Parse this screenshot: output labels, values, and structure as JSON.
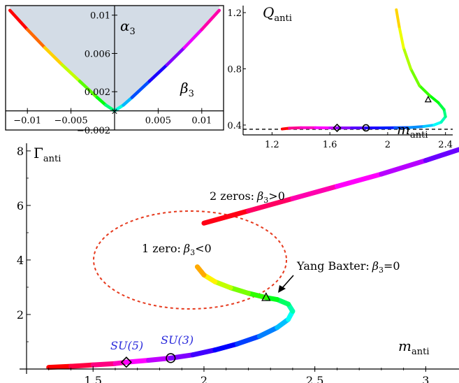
{
  "chart_data": [
    {
      "type": "scatter",
      "role": "inset-left",
      "title": "",
      "xlabel": "β3",
      "ylabel": "α3",
      "xlim": [
        -0.0125,
        0.0125
      ],
      "ylim": [
        -0.002,
        0.011
      ],
      "x_tick_labels": [
        "−0.01",
        "−0.005",
        "0.005",
        "0.01"
      ],
      "y_tick_labels": [
        "0.01",
        "0.006",
        "0.002",
        "−0.002"
      ],
      "x_ticks": [
        -0.01,
        -0.005,
        0.005,
        0.01
      ],
      "y_ticks": [
        0.01,
        0.006,
        0.002,
        -0.002
      ],
      "shaded_region": "above curve, light blue-gray",
      "marker_at_origin": "×",
      "curve": {
        "x": [
          -0.012,
          -0.01,
          -0.008,
          -0.006,
          -0.004,
          -0.002,
          -0.001,
          0.0,
          0.001,
          0.002,
          0.004,
          0.006,
          0.008,
          0.01,
          0.012
        ],
        "y": [
          0.0105,
          0.0085,
          0.0066,
          0.0048,
          0.0031,
          0.0014,
          0.0006,
          0.0,
          0.0006,
          0.0014,
          0.0031,
          0.0048,
          0.0066,
          0.0085,
          0.0105
        ]
      },
      "color_gradient": "rainbow: red (left) → yellow → green → cyan (origin) → blue → purple → magenta (right)"
    },
    {
      "type": "line",
      "role": "inset-right",
      "title": "",
      "xlabel": "m_anti",
      "ylabel": "Q_anti",
      "xlim": [
        1.0,
        2.45
      ],
      "ylim": [
        0.33,
        1.25
      ],
      "x_tick_labels": [
        "1.2",
        "1.6",
        "2",
        "2.4"
      ],
      "y_tick_labels": [
        "1.2",
        "0.8",
        "0.4"
      ],
      "x_ticks": [
        1.2,
        1.6,
        2.0,
        2.4
      ],
      "y_ticks": [
        1.2,
        0.8,
        0.4
      ],
      "dashed_line_y": 0.37,
      "curve": {
        "x": [
          1.27,
          1.32,
          1.4,
          1.5,
          1.6,
          1.65,
          1.75,
          1.85,
          1.95,
          2.05,
          2.15,
          2.25,
          2.32,
          2.37,
          2.4,
          2.39,
          2.35,
          2.29,
          2.22,
          2.16,
          2.11,
          2.08,
          2.06
        ],
        "y": [
          0.372,
          0.378,
          0.381,
          0.381,
          0.38,
          0.38,
          0.38,
          0.38,
          0.38,
          0.381,
          0.382,
          0.39,
          0.4,
          0.42,
          0.46,
          0.51,
          0.56,
          0.61,
          0.68,
          0.8,
          0.95,
          1.1,
          1.22
        ]
      },
      "markers": [
        {
          "shape": "diamond",
          "x": 1.65,
          "y": 0.38
        },
        {
          "shape": "circle",
          "x": 1.85,
          "y": 0.38
        },
        {
          "shape": "triangle",
          "x": 2.28,
          "y": 0.58
        }
      ]
    },
    {
      "type": "line",
      "role": "main",
      "title": "",
      "xlabel": "m_anti",
      "ylabel": "Γ_anti",
      "xlim": [
        1.2,
        3.15
      ],
      "ylim": [
        0,
        8.1
      ],
      "x_tick_labels": [
        "1.5",
        "2",
        "2.5",
        "3"
      ],
      "y_tick_labels": [
        "2",
        "4",
        "6",
        "8"
      ],
      "x_ticks": [
        1.5,
        2.0,
        2.5,
        3.0
      ],
      "y_ticks": [
        2,
        4,
        6,
        8
      ],
      "branch_negative": {
        "x": [
          1.3,
          1.4,
          1.5,
          1.6,
          1.65,
          1.75,
          1.85,
          1.95,
          2.05,
          2.15,
          2.25,
          2.33,
          2.38,
          2.4,
          2.38,
          2.33,
          2.28,
          2.2,
          2.12,
          2.05,
          2.0,
          1.97
        ],
        "y": [
          0.06,
          0.1,
          0.15,
          0.2,
          0.25,
          0.32,
          0.4,
          0.52,
          0.7,
          0.92,
          1.2,
          1.52,
          1.82,
          2.12,
          2.38,
          2.55,
          2.62,
          2.78,
          2.98,
          3.2,
          3.45,
          3.75
        ]
      },
      "branch_positive": {
        "x": [
          2.0,
          2.2,
          2.4,
          2.6,
          2.8,
          3.0,
          3.15
        ],
        "y": [
          5.35,
          5.8,
          6.25,
          6.7,
          7.15,
          7.65,
          8.05
        ]
      },
      "markers": [
        {
          "shape": "diamond",
          "x": 1.65,
          "y": 0.25
        },
        {
          "shape": "circle",
          "x": 1.85,
          "y": 0.4
        },
        {
          "shape": "triangle",
          "x": 2.28,
          "y": 2.62
        }
      ],
      "annotations": {
        "two_zeros_prefix": "2 zeros:",
        "two_zeros_cond": ">0",
        "one_zero_prefix": "1 zero:",
        "one_zero_cond": "<0",
        "yang_baxter_prefix": "Yang Baxter:",
        "yang_baxter_cond": "=0",
        "beta_symbol": "β",
        "beta_sub": "3",
        "su5": "SU(5)",
        "su3": "SU(3)"
      },
      "ellipse_color": "#e63a1e"
    }
  ],
  "labels": {
    "alpha": "α",
    "alpha_sub": "3",
    "beta": "β",
    "beta_sub": "3",
    "q": "Q",
    "q_sub": "anti",
    "m": "m",
    "m_sub": "anti",
    "gamma": "Γ",
    "gamma_sub": "anti"
  }
}
